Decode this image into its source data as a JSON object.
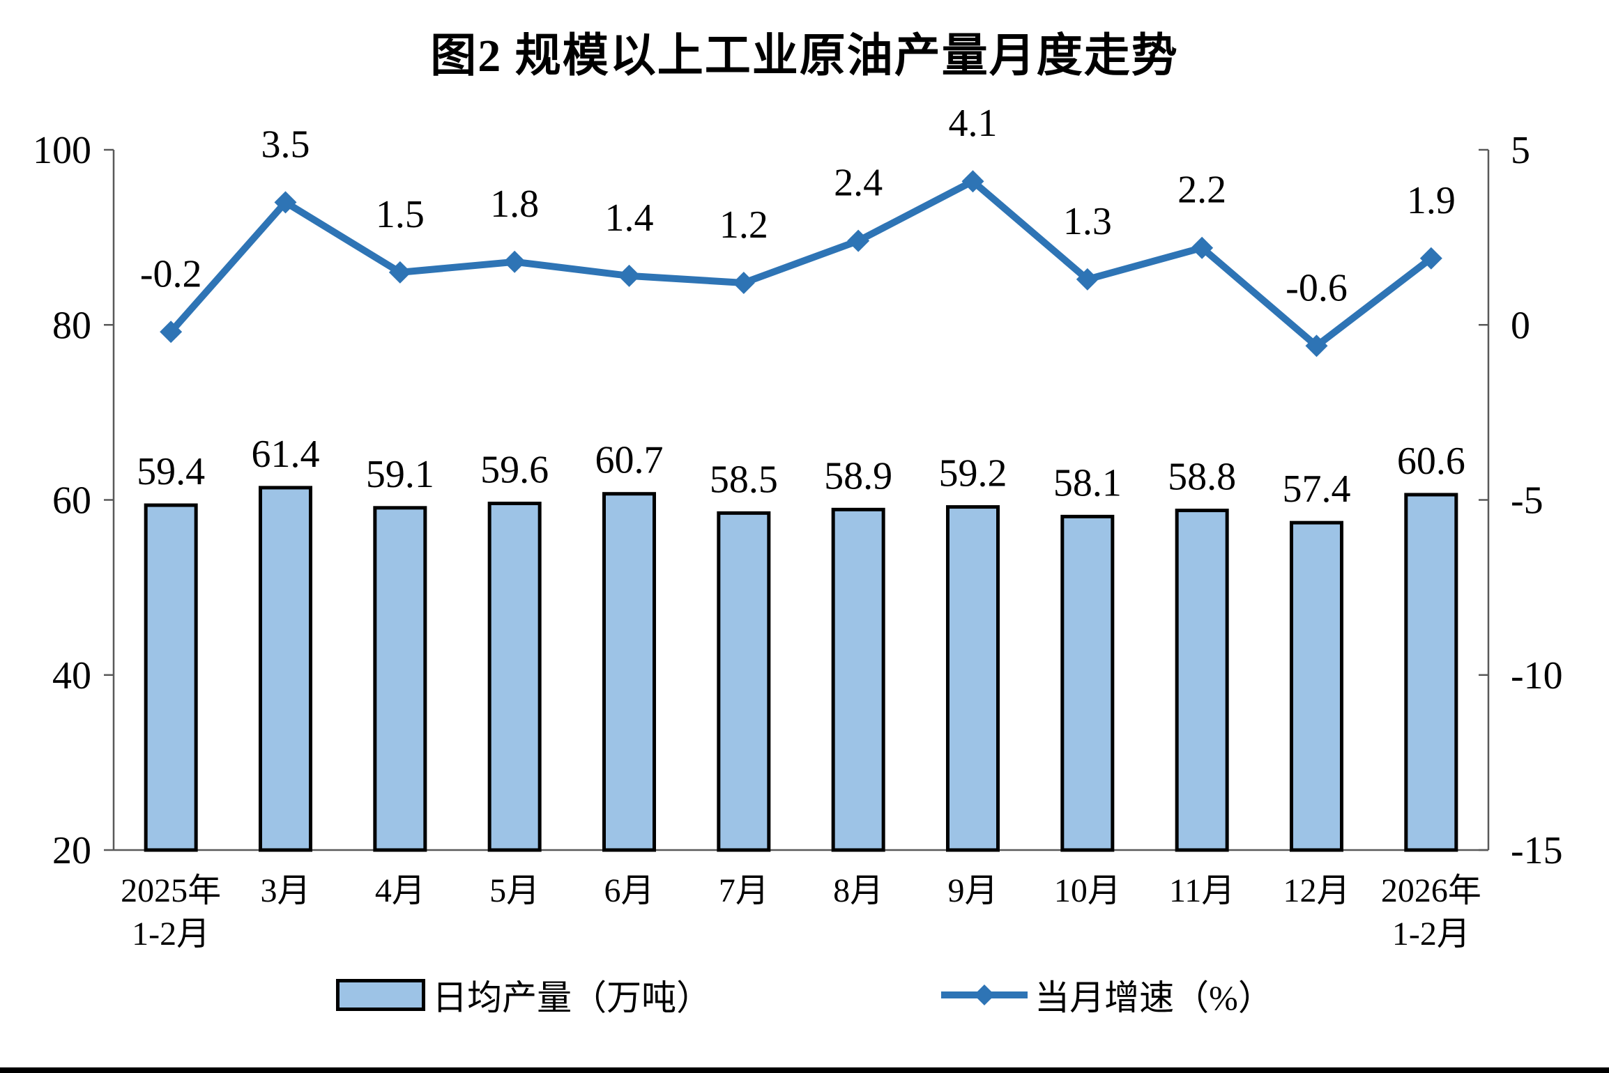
{
  "chart_data": {
    "type": "combo_bar_line",
    "title": "图2 规模以上工业原油产量月度走势",
    "categories": [
      "2025年\n1-2月",
      "3月",
      "4月",
      "5月",
      "6月",
      "7月",
      "8月",
      "9月",
      "10月",
      "11月",
      "12月",
      "2026年\n1-2月"
    ],
    "series": [
      {
        "name": "日均产量（万吨）",
        "type": "bar",
        "axis": "left",
        "color": "#9DC3E6",
        "border_color": "#000000",
        "values": [
          59.4,
          61.4,
          59.1,
          59.6,
          60.7,
          58.5,
          58.9,
          59.2,
          58.1,
          58.8,
          57.4,
          60.6
        ]
      },
      {
        "name": "当月增速（%）",
        "type": "line",
        "axis": "right",
        "color": "#2E74B5",
        "marker": "diamond",
        "values": [
          -0.2,
          3.5,
          1.5,
          1.8,
          1.4,
          1.2,
          2.4,
          4.1,
          1.3,
          2.2,
          -0.6,
          1.9
        ]
      }
    ],
    "left_axis": {
      "min": 20,
      "max": 100,
      "step": 20,
      "ticks": [
        20,
        40,
        60,
        80,
        100
      ]
    },
    "right_axis": {
      "min": -15,
      "max": 5,
      "step": 5,
      "ticks": [
        -15,
        -10,
        -5,
        0,
        5
      ]
    },
    "grid": false,
    "legend_position": "bottom"
  }
}
